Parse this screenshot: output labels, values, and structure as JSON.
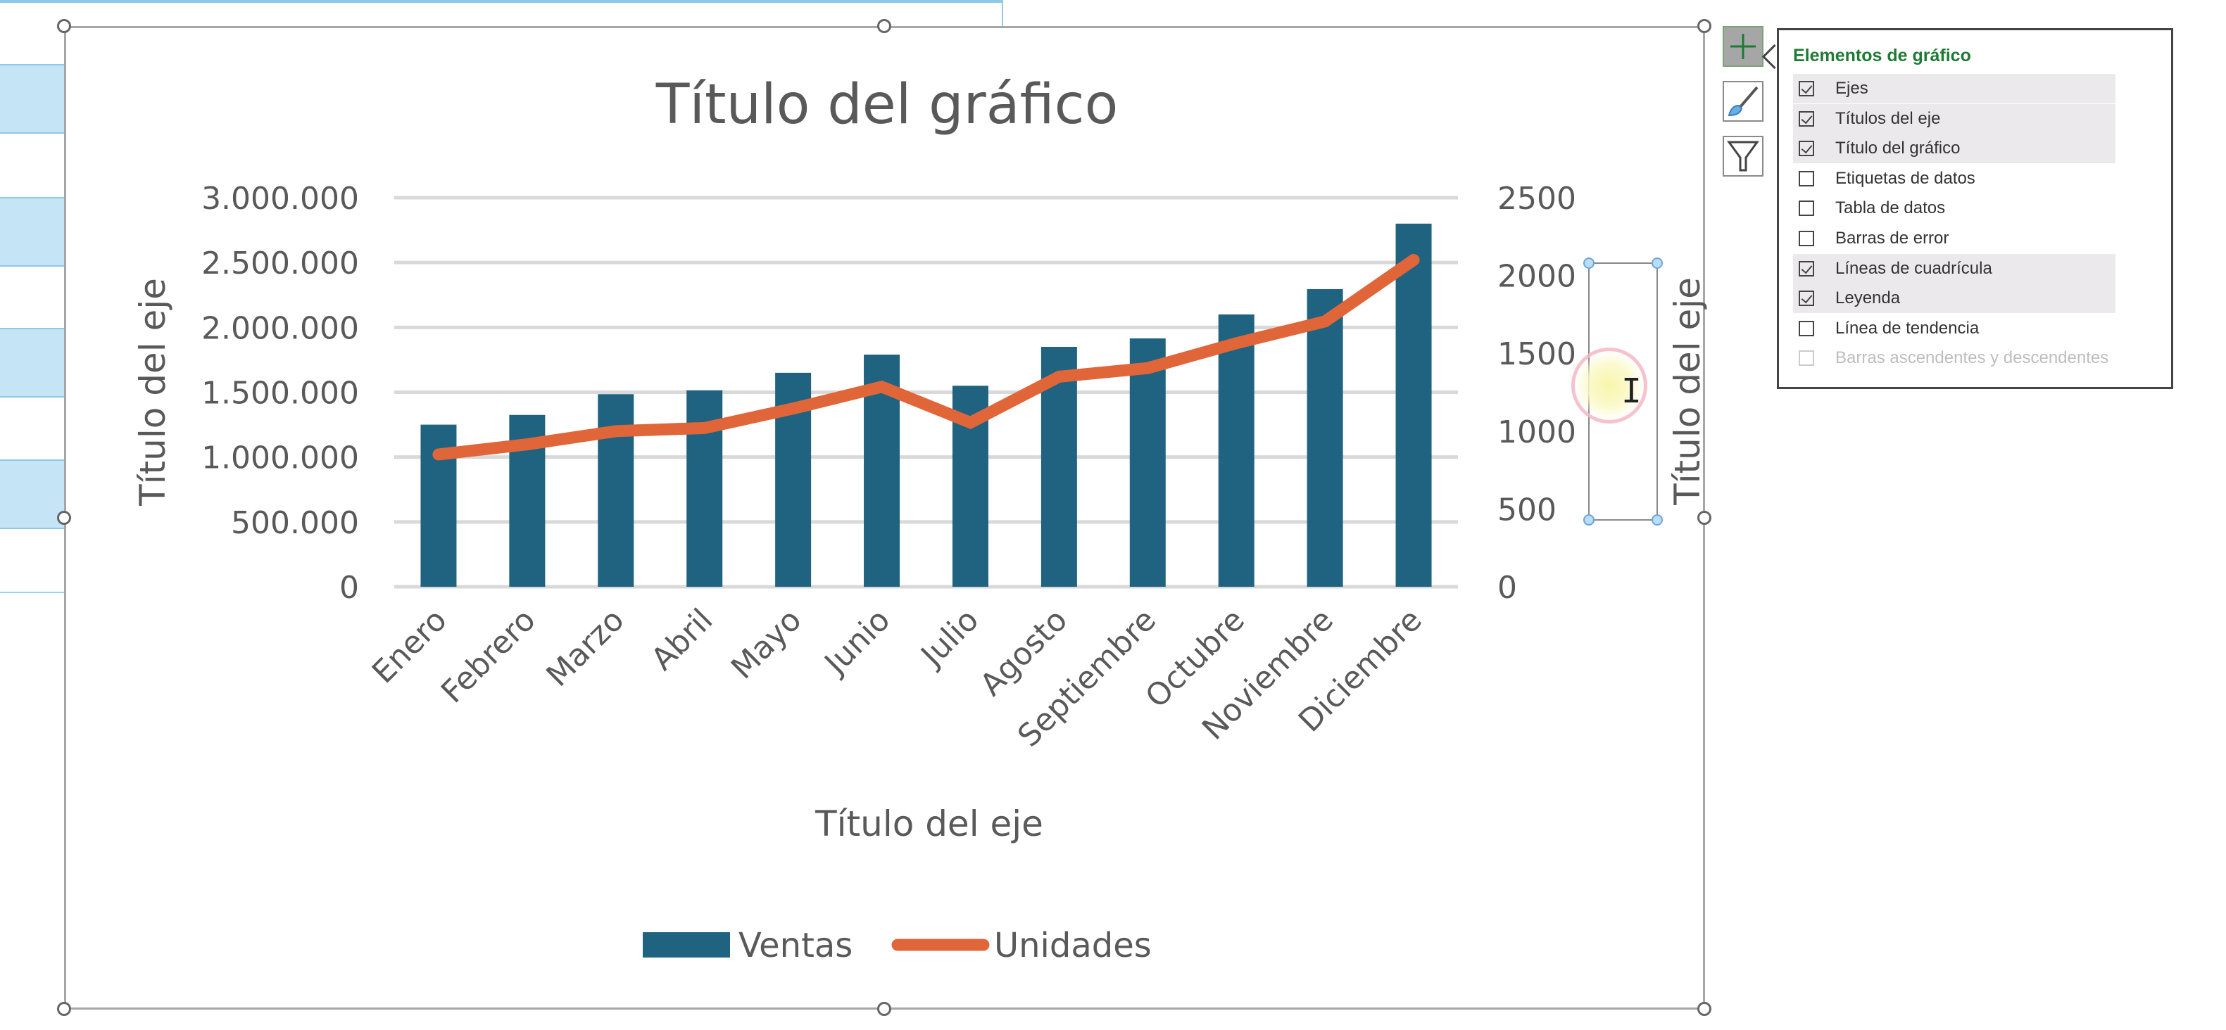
{
  "chart_data": {
    "type": "bar+line",
    "title": "Título del gráfico",
    "xlabel": "Título del eje",
    "ylabel": "Título del eje",
    "y2label": "Título del eje",
    "categories": [
      "Enero",
      "Febrero",
      "Marzo",
      "Abril",
      "Mayo",
      "Junio",
      "Julio",
      "Agosto",
      "Septiembre",
      "Octubre",
      "Noviembre",
      "Diciembre"
    ],
    "series": [
      {
        "name": "Ventas",
        "type": "bar",
        "axis": "left",
        "color": "#1f6381",
        "values": [
          1250000,
          1325000,
          1485000,
          1515000,
          1650000,
          1790000,
          1550000,
          1850000,
          1915000,
          2100000,
          2295000,
          2800000
        ]
      },
      {
        "name": "Unidades",
        "type": "line",
        "axis": "right",
        "color": "#e0663a",
        "values": [
          850,
          915,
          1000,
          1020,
          1145,
          1285,
          1055,
          1350,
          1405,
          1565,
          1705,
          2100
        ]
      }
    ],
    "ylim": [
      0,
      3000000
    ],
    "y2lim": [
      0,
      2500
    ],
    "yticks": [
      "0",
      "500.000",
      "1.000.000",
      "1.500.000",
      "2.000.000",
      "2.500.000",
      "3.000.000"
    ],
    "y2ticks": [
      "0",
      "500",
      "1000",
      "1500",
      "2000",
      "2500"
    ],
    "grid": true,
    "legend": "bottom"
  },
  "panel": {
    "title": "Elementos de gráfico",
    "items": [
      {
        "label": "Ejes",
        "checked": true,
        "enabled": true
      },
      {
        "label": "Títulos del eje",
        "checked": true,
        "enabled": true
      },
      {
        "label": "Título del gráfico",
        "checked": true,
        "enabled": true
      },
      {
        "label": "Etiquetas de datos",
        "checked": false,
        "enabled": true
      },
      {
        "label": "Tabla de datos",
        "checked": false,
        "enabled": true
      },
      {
        "label": "Barras de error",
        "checked": false,
        "enabled": true
      },
      {
        "label": "Líneas de cuadrícula",
        "checked": true,
        "enabled": true
      },
      {
        "label": "Leyenda",
        "checked": true,
        "enabled": true
      },
      {
        "label": "Línea de tendencia",
        "checked": false,
        "enabled": true
      },
      {
        "label": "Barras ascendentes y descendentes",
        "checked": false,
        "enabled": false
      }
    ]
  },
  "side_buttons": [
    "plus-icon",
    "brush-icon",
    "filter-icon"
  ],
  "colors": {
    "accent_green": "#1e7b34",
    "bar": "#1f6381",
    "line": "#e0663a",
    "grid": "#d9d9d9"
  }
}
